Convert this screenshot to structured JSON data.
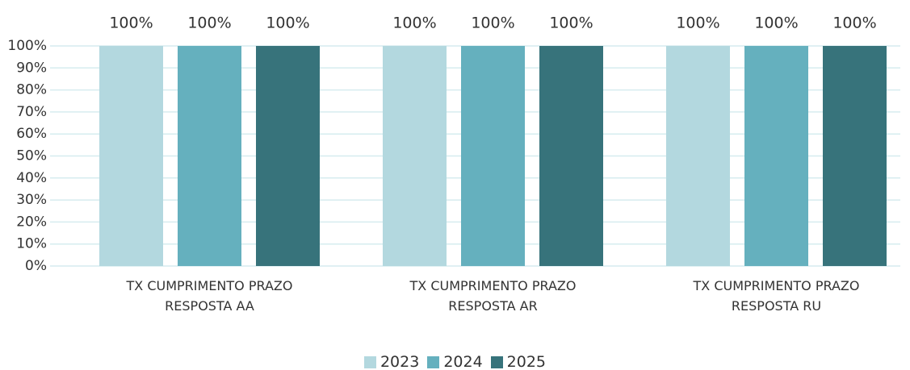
{
  "chart_data": {
    "type": "bar",
    "categories": [
      "TX CUMPRIMENTO PRAZO RESPOSTA AA",
      "TX CUMPRIMENTO PRAZO RESPOSTA AR",
      "TX CUMPRIMENTO PRAZO RESPOSTA RU"
    ],
    "series": [
      {
        "name": "2023",
        "color": "#b3d8df",
        "values": [
          100,
          100,
          100
        ],
        "value_labels": [
          "100%",
          "100%",
          "100%"
        ]
      },
      {
        "name": "2024",
        "color": "#65b0be",
        "values": [
          100,
          100,
          100
        ],
        "value_labels": [
          "100%",
          "100%",
          "100%"
        ]
      },
      {
        "name": "2025",
        "color": "#37737b",
        "values": [
          100,
          100,
          100
        ],
        "value_labels": [
          "100%",
          "100%",
          "100%"
        ]
      }
    ],
    "ylim": [
      0,
      100
    ],
    "yticks": [
      {
        "value": 0,
        "label": "0%"
      },
      {
        "value": 10,
        "label": "10%"
      },
      {
        "value": 20,
        "label": "20%"
      },
      {
        "value": 30,
        "label": "30%"
      },
      {
        "value": 40,
        "label": "40%"
      },
      {
        "value": 50,
        "label": "50%"
      },
      {
        "value": 60,
        "label": "60%"
      },
      {
        "value": 70,
        "label": "70%"
      },
      {
        "value": 80,
        "label": "80%"
      },
      {
        "value": 90,
        "label": "90%"
      },
      {
        "value": 100,
        "label": "100%"
      }
    ],
    "grid": true,
    "legend": "bottom"
  }
}
